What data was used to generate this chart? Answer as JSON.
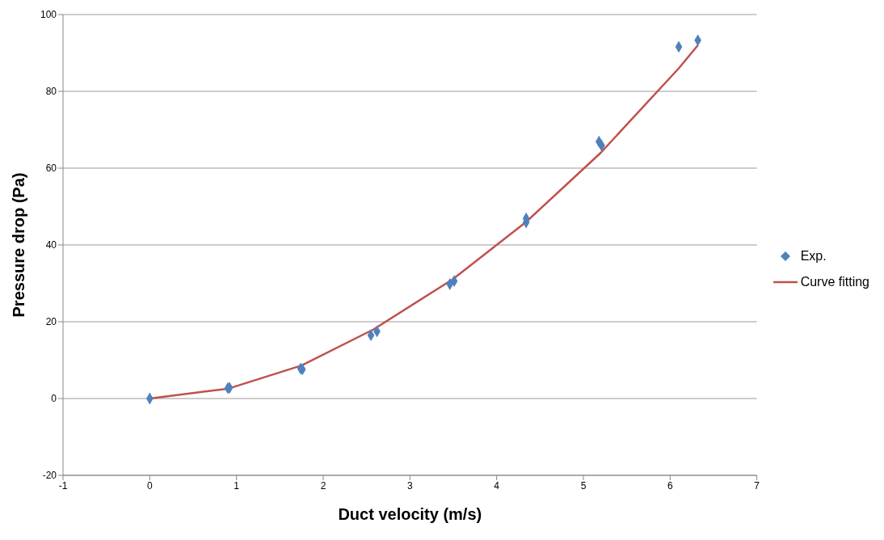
{
  "chart_data": {
    "type": "scatter",
    "xlabel": "Duct velocity (m/s)",
    "ylabel": "Pressure drop (Pa)",
    "xlim": [
      -1,
      7
    ],
    "xticks": [
      -1,
      0,
      1,
      2,
      3,
      4,
      5,
      6,
      7
    ],
    "ylim": [
      -20,
      100
    ],
    "yticks": [
      -20,
      0,
      20,
      40,
      60,
      80,
      100
    ],
    "grid": "y",
    "legend": "right",
    "series": [
      {
        "name": "Exp.",
        "marker": "diamond",
        "color": "#4f81bd",
        "x": [
          0,
          0.9,
          0.92,
          1.74,
          1.76,
          2.55,
          2.62,
          3.46,
          3.51,
          4.34,
          4.34,
          5.18,
          5.21,
          6.1,
          6.32
        ],
        "values": [
          0,
          2.7,
          2.8,
          7.8,
          7.6,
          16.5,
          17.5,
          29.8,
          30.6,
          45.9,
          46.9,
          66.9,
          65.9,
          91.6,
          93.3
        ]
      },
      {
        "name": "Curve fitting",
        "type": "line",
        "marker": "none",
        "color": "#c0504d",
        "x": [
          0,
          0.91,
          1.75,
          2.58,
          3.49,
          4.34,
          5.2,
          6.1,
          6.32
        ],
        "values": [
          0,
          2.6,
          8.6,
          18,
          31,
          46,
          64,
          86,
          92
        ]
      }
    ]
  }
}
